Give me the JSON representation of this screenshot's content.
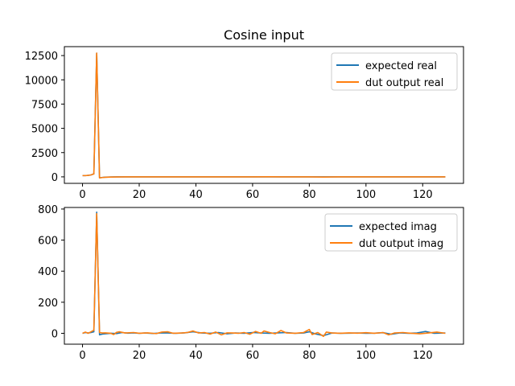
{
  "figure": {
    "title": "Cosine input"
  },
  "chart_data": [
    {
      "type": "line",
      "title": "Cosine input",
      "xlabel": "",
      "ylabel": "",
      "xlim": [
        -6.4,
        134.4
      ],
      "ylim": [
        -670,
        13420
      ],
      "xticks": [
        0,
        20,
        40,
        60,
        80,
        100,
        120
      ],
      "yticks": [
        0,
        2500,
        5000,
        7500,
        10000,
        12500
      ],
      "legend": "top-right",
      "grid": false,
      "series": [
        {
          "name": "expected real",
          "color": "#1f77b4",
          "x": [
            0,
            1,
            2,
            3,
            4,
            5,
            6,
            7,
            8,
            10,
            12,
            15,
            20,
            30,
            40,
            50,
            60,
            70,
            80,
            90,
            100,
            110,
            120,
            128
          ],
          "values": [
            128,
            128,
            150,
            200,
            300,
            12750,
            -100,
            -60,
            -30,
            -10,
            -5,
            -5,
            -5,
            -5,
            -5,
            -5,
            -5,
            -5,
            -5,
            -5,
            -5,
            -5,
            -5,
            -5
          ]
        },
        {
          "name": "dut output real",
          "color": "#ff7f0e",
          "x": [
            0,
            1,
            2,
            3,
            4,
            5,
            6,
            7,
            8,
            10,
            12,
            15,
            20,
            30,
            40,
            50,
            60,
            66,
            70,
            80,
            85,
            90,
            100,
            110,
            120,
            128
          ],
          "values": [
            128,
            128,
            150,
            200,
            300,
            12750,
            -110,
            -70,
            -40,
            -20,
            -10,
            -5,
            -5,
            -5,
            -5,
            -5,
            -5,
            10,
            -5,
            -5,
            -20,
            -5,
            -5,
            -5,
            -5,
            -5
          ]
        }
      ]
    },
    {
      "type": "line",
      "title": "",
      "xlabel": "",
      "ylabel": "",
      "xlim": [
        -6.4,
        134.4
      ],
      "ylim": [
        -70,
        810
      ],
      "xticks": [
        0,
        20,
        40,
        60,
        80,
        100,
        120
      ],
      "yticks": [
        0,
        200,
        400,
        600,
        800
      ],
      "legend": "top-right",
      "grid": false,
      "series": [
        {
          "name": "expected imag",
          "color": "#1f77b4",
          "x": [
            0,
            1,
            2,
            3,
            4,
            5,
            6,
            7,
            8,
            10,
            12,
            14,
            16,
            18,
            20,
            22,
            25,
            28,
            30,
            33,
            36,
            39,
            42,
            45,
            48,
            51,
            54,
            57,
            60,
            63,
            66,
            69,
            72,
            75,
            78,
            80,
            82,
            85,
            88,
            91,
            94,
            97,
            100,
            103,
            106,
            109,
            112,
            115,
            118,
            121,
            124,
            128
          ],
          "values": [
            0,
            5,
            2,
            5,
            10,
            780,
            -10,
            -5,
            -3,
            0,
            -2,
            5,
            1,
            3,
            0,
            2,
            -1,
            3,
            2,
            0,
            3,
            10,
            2,
            0,
            5,
            -3,
            2,
            0,
            5,
            2,
            0,
            3,
            5,
            0,
            2,
            10,
            -3,
            -15,
            2,
            0,
            1,
            2,
            0,
            1,
            4,
            -6,
            3,
            0,
            2,
            12,
            0,
            2
          ]
        },
        {
          "name": "dut output imag",
          "color": "#ff7f0e",
          "x": [
            0,
            1,
            2,
            3,
            4,
            5,
            6,
            7,
            8,
            10,
            11,
            12,
            13,
            15,
            18,
            20,
            23,
            26,
            28,
            30,
            32,
            35,
            37,
            39,
            41,
            43,
            45,
            47,
            49,
            51,
            53,
            55,
            57,
            59,
            61,
            63,
            64,
            66,
            68,
            70,
            72,
            75,
            78,
            80,
            81,
            83,
            85,
            86,
            88,
            91,
            94,
            97,
            100,
            103,
            106,
            108,
            110,
            113,
            116,
            119,
            122,
            125,
            128
          ],
          "values": [
            0,
            8,
            0,
            10,
            20,
            770,
            5,
            2,
            3,
            0,
            -8,
            6,
            10,
            2,
            5,
            0,
            3,
            -2,
            8,
            10,
            0,
            2,
            5,
            15,
            2,
            5,
            -5,
            8,
            -10,
            3,
            2,
            0,
            5,
            -6,
            12,
            0,
            15,
            5,
            -3,
            18,
            2,
            0,
            5,
            25,
            -8,
            5,
            -20,
            8,
            2,
            0,
            3,
            1,
            4,
            0,
            5,
            -10,
            2,
            5,
            0,
            -3,
            2,
            8,
            0
          ]
        }
      ]
    }
  ]
}
